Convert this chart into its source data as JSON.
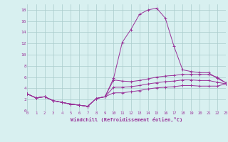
{
  "x": [
    0,
    1,
    2,
    3,
    4,
    5,
    6,
    7,
    8,
    9,
    10,
    11,
    12,
    13,
    14,
    15,
    16,
    17,
    18,
    19,
    20,
    21,
    22,
    23
  ],
  "line1": [
    3.0,
    2.3,
    2.5,
    1.8,
    1.5,
    1.2,
    1.0,
    0.8,
    2.2,
    2.5,
    5.8,
    12.2,
    14.5,
    17.2,
    18.0,
    18.3,
    16.5,
    11.5,
    7.3,
    7.0,
    6.8,
    6.8,
    5.8,
    5.0
  ],
  "line2": [
    3.0,
    2.3,
    2.5,
    1.8,
    1.5,
    1.2,
    1.0,
    0.8,
    2.2,
    2.5,
    5.5,
    5.3,
    5.2,
    5.4,
    5.7,
    6.0,
    6.2,
    6.3,
    6.5,
    6.5,
    6.5,
    6.5,
    6.0,
    5.0
  ],
  "line3": [
    3.0,
    2.3,
    2.5,
    1.8,
    1.5,
    1.2,
    1.0,
    0.8,
    2.2,
    2.5,
    4.2,
    4.2,
    4.3,
    4.5,
    4.8,
    5.0,
    5.2,
    5.3,
    5.5,
    5.5,
    5.4,
    5.4,
    5.1,
    4.8
  ],
  "line4": [
    3.0,
    2.3,
    2.5,
    1.8,
    1.5,
    1.2,
    1.0,
    0.8,
    2.2,
    2.5,
    3.2,
    3.2,
    3.4,
    3.6,
    3.9,
    4.1,
    4.2,
    4.3,
    4.5,
    4.5,
    4.4,
    4.4,
    4.4,
    4.8
  ],
  "line_color": "#993399",
  "bg_color": "#d8f0f0",
  "grid_color": "#aacccc",
  "xlabel": "Windchill (Refroidissement éolien,°C)",
  "xlabel_color": "#993399",
  "tick_color": "#993399",
  "ylim": [
    0,
    19
  ],
  "xlim": [
    0,
    23
  ],
  "yticks": [
    0,
    2,
    4,
    6,
    8,
    10,
    12,
    14,
    16,
    18
  ],
  "xticks": [
    0,
    1,
    2,
    3,
    4,
    5,
    6,
    7,
    8,
    9,
    10,
    11,
    12,
    13,
    14,
    15,
    16,
    17,
    18,
    19,
    20,
    21,
    22,
    23
  ]
}
